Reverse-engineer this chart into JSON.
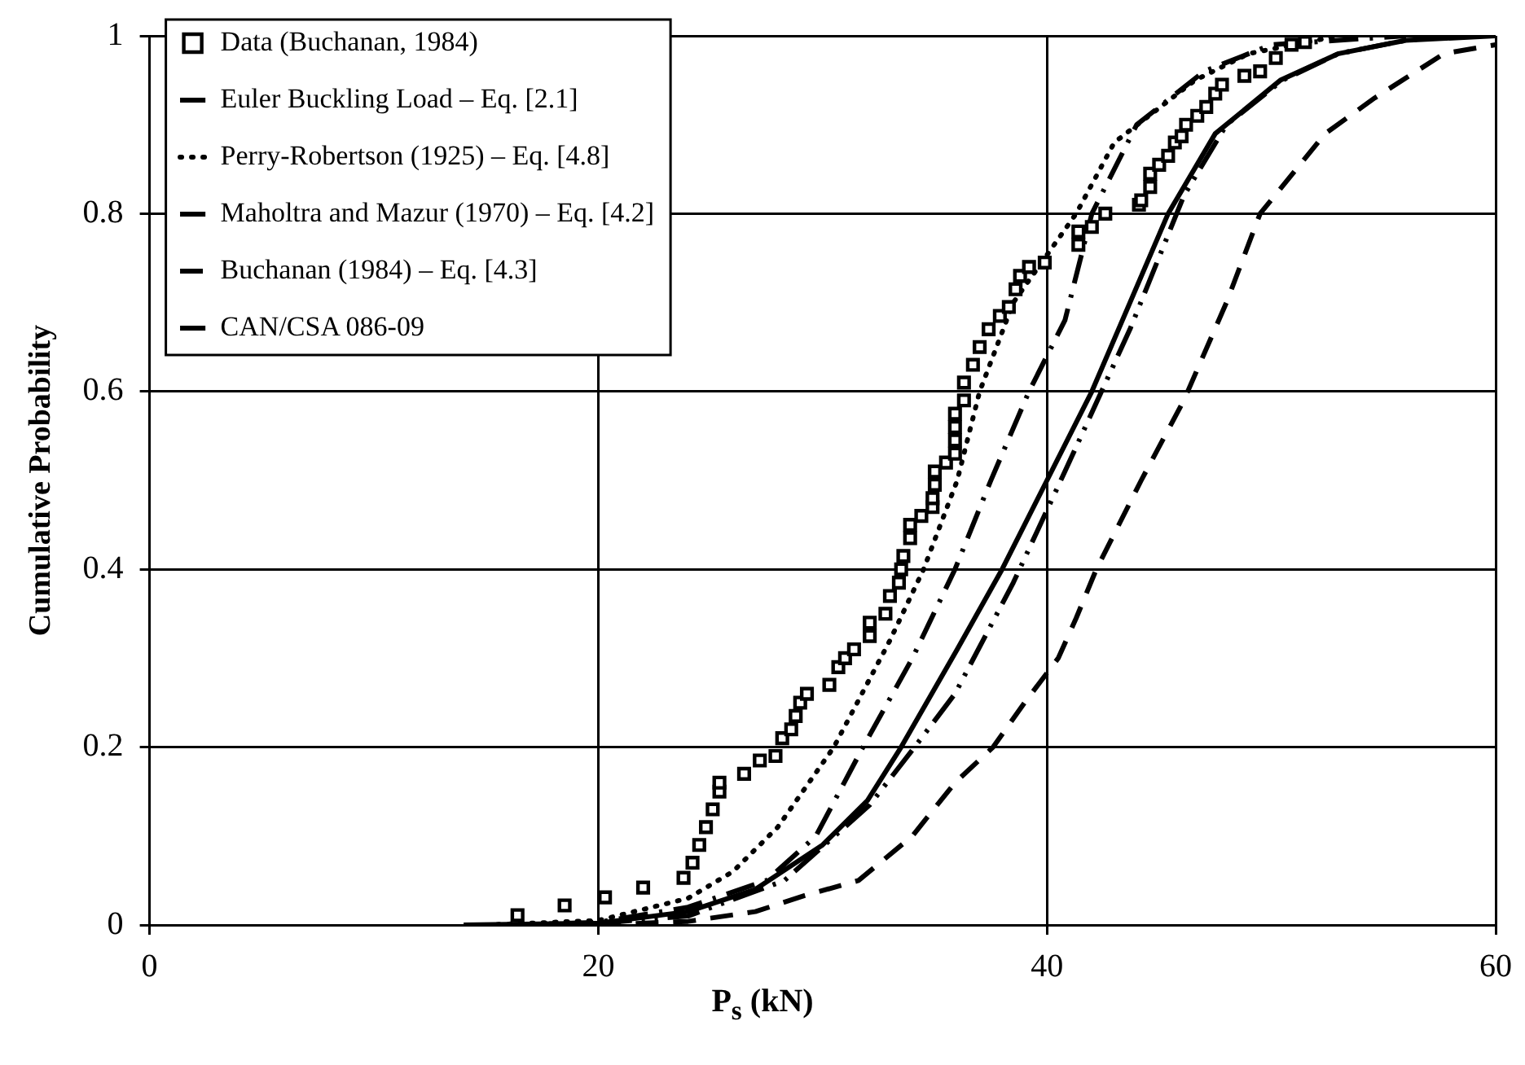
{
  "chart_data": {
    "type": "line",
    "xlabel": "P$_{s}$ (kN)",
    "ylabel": "Cumulative Probability",
    "xlim": [
      0,
      60
    ],
    "xticks": [
      0,
      20,
      40,
      60
    ],
    "ylim": [
      0,
      1
    ],
    "yticks": [
      0,
      0.2,
      0.4,
      0.6,
      0.8,
      1
    ],
    "grid": true,
    "legend": "top left",
    "series": [
      {
        "name": "Data (Buchanan, 1984)",
        "type": "scatter",
        "marker": "square",
        "color": "#000000",
        "x": [
          16.4,
          18.5,
          20.3,
          22.0,
          23.8,
          24.2,
          24.5,
          24.8,
          25.1,
          25.4,
          25.4,
          26.5,
          27.2,
          27.9,
          28.2,
          28.6,
          28.8,
          29.0,
          29.3,
          30.3,
          30.7,
          31.0,
          31.4,
          32.1,
          32.1,
          32.8,
          33.0,
          33.4,
          33.5,
          33.6,
          33.9,
          33.9,
          34.4,
          34.9,
          34.9,
          35.0,
          35.0,
          35.5,
          35.9,
          35.9,
          35.9,
          35.9,
          36.3,
          36.3,
          36.7,
          37.0,
          37.4,
          37.9,
          38.3,
          38.6,
          38.8,
          39.2,
          39.9,
          41.4,
          41.4,
          42.0,
          42.6,
          44.1,
          44.2,
          44.6,
          44.6,
          45.0,
          45.4,
          45.7,
          46.0,
          46.2,
          46.7,
          47.1,
          47.5,
          47.8,
          48.8,
          49.5,
          50.2,
          50.9,
          51.5
        ],
        "values": [
          0.011,
          0.022,
          0.031,
          0.042,
          0.053,
          0.07,
          0.09,
          0.11,
          0.13,
          0.15,
          0.16,
          0.17,
          0.185,
          0.19,
          0.21,
          0.22,
          0.235,
          0.25,
          0.26,
          0.27,
          0.29,
          0.3,
          0.31,
          0.325,
          0.34,
          0.35,
          0.37,
          0.385,
          0.4,
          0.415,
          0.435,
          0.45,
          0.46,
          0.47,
          0.48,
          0.495,
          0.51,
          0.52,
          0.53,
          0.545,
          0.56,
          0.575,
          0.59,
          0.61,
          0.63,
          0.65,
          0.67,
          0.685,
          0.695,
          0.715,
          0.73,
          0.74,
          0.745,
          0.765,
          0.78,
          0.785,
          0.8,
          0.81,
          0.815,
          0.83,
          0.845,
          0.855,
          0.865,
          0.88,
          0.887,
          0.9,
          0.91,
          0.92,
          0.935,
          0.945,
          0.955,
          0.96,
          0.975,
          0.99,
          0.993
        ]
      },
      {
        "name": "Euler Buckling Load – Eq. [2.1]",
        "marker": "none",
        "line_style": "solid",
        "color": "#000000",
        "x": [
          14,
          20,
          24,
          27,
          30,
          32,
          33.5,
          36,
          38,
          40,
          42,
          43.7,
          45.4,
          47.5,
          50.4,
          53,
          56,
          60
        ],
        "values": [
          0,
          0.002,
          0.015,
          0.04,
          0.09,
          0.14,
          0.2,
          0.31,
          0.4,
          0.5,
          0.6,
          0.7,
          0.8,
          0.89,
          0.95,
          0.98,
          0.995,
          1
        ]
      },
      {
        "name": "Perry-Robertson (1925) – Eq. [4.8]",
        "marker": "none",
        "line_style": "dotted",
        "color": "#000000",
        "x": [
          15,
          20,
          24,
          26,
          28,
          30.5,
          33,
          34.5,
          36,
          37,
          38.5,
          41.3,
          43,
          46.6,
          49,
          53
        ],
        "values": [
          0,
          0.005,
          0.03,
          0.06,
          0.11,
          0.2,
          0.32,
          0.4,
          0.5,
          0.6,
          0.7,
          0.8,
          0.88,
          0.95,
          0.98,
          1
        ]
      },
      {
        "name": "Maholtra and Mazur (1970) – Eq. [4.2]",
        "marker": "none",
        "line_style": "dashdot",
        "color": "#000000",
        "x": [
          16,
          20,
          24,
          27.5,
          29.7,
          31.8,
          34,
          35.9,
          37.5,
          39.2,
          40.8,
          42,
          44,
          47,
          50,
          56
        ],
        "values": [
          0,
          0.003,
          0.02,
          0.05,
          0.1,
          0.2,
          0.3,
          0.4,
          0.5,
          0.6,
          0.68,
          0.8,
          0.9,
          0.96,
          0.99,
          1
        ]
      },
      {
        "name": "Buchanan (1984) – Eq. [4.3]",
        "marker": "none",
        "line_style": "dashed",
        "color": "#000000",
        "x": [
          20,
          24,
          27,
          29.2,
          31.6,
          34,
          35.9,
          37.6,
          39,
          40.5,
          41.3,
          42.2,
          44.2,
          46.1,
          48,
          49.5,
          52.4,
          54.6,
          57.7,
          60
        ],
        "values": [
          0,
          0.004,
          0.015,
          0.033,
          0.05,
          0.1,
          0.16,
          0.2,
          0.25,
          0.3,
          0.345,
          0.4,
          0.5,
          0.59,
          0.7,
          0.8,
          0.89,
          0.93,
          0.98,
          0.99
        ]
      },
      {
        "name": "CAN/CSA 086-09",
        "marker": "none",
        "line_style": "dashdotdot",
        "color": "#000000",
        "x": [
          17,
          20,
          24,
          28.3,
          32.1,
          34.1,
          35.9,
          38.5,
          40.8,
          43.7,
          46.1,
          48,
          50.5,
          53,
          56,
          58.5
        ],
        "values": [
          0,
          0.002,
          0.01,
          0.05,
          0.135,
          0.2,
          0.26,
          0.385,
          0.51,
          0.67,
          0.82,
          0.9,
          0.95,
          0.98,
          0.995,
          1
        ]
      }
    ]
  }
}
